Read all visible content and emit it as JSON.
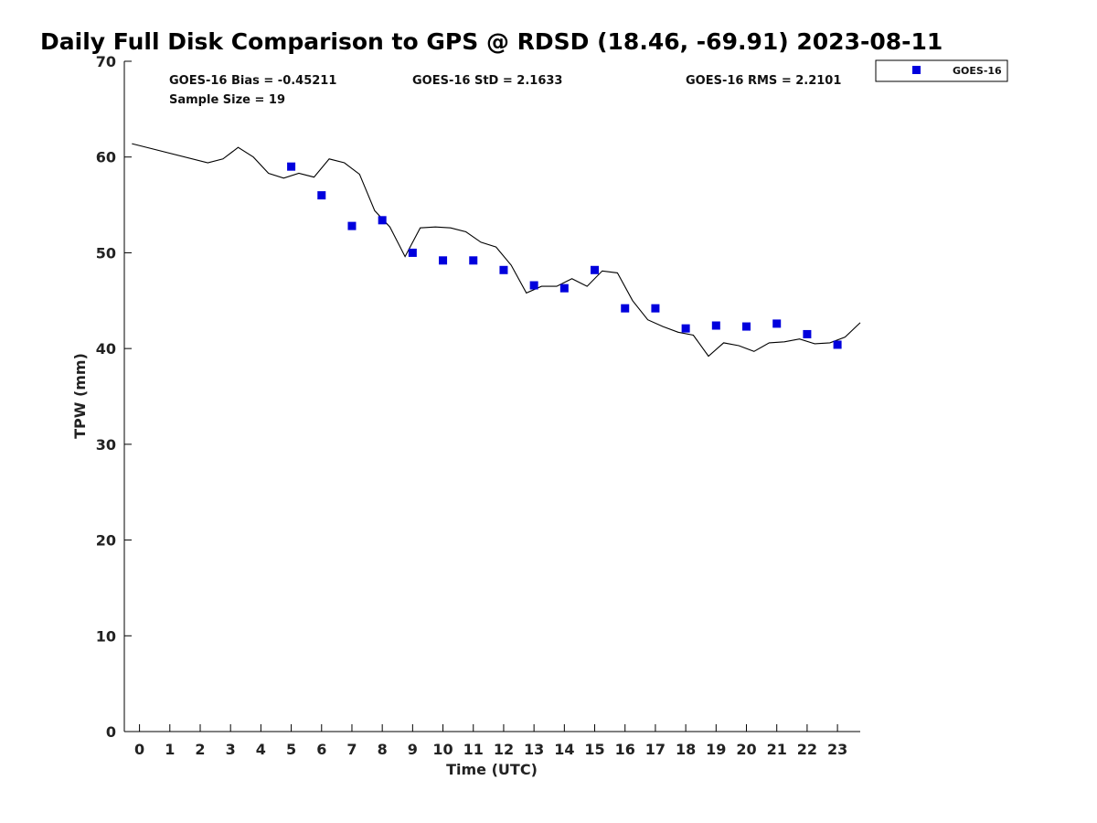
{
  "chart_data": {
    "type": "line",
    "title": "Daily Full Disk Comparison to GPS @ RDSD (18.46, -69.91) 2023-08-11",
    "xlabel": "Time (UTC)",
    "ylabel": "TPW (mm)",
    "xlim": [
      -0.5,
      23.75
    ],
    "ylim": [
      0,
      70
    ],
    "x_ticks": [
      0,
      1,
      2,
      3,
      4,
      5,
      6,
      7,
      8,
      9,
      10,
      11,
      12,
      13,
      14,
      15,
      16,
      17,
      18,
      19,
      20,
      21,
      22,
      23
    ],
    "y_ticks": [
      0,
      10,
      20,
      30,
      40,
      50,
      60,
      70
    ],
    "grid": false,
    "legend_position": "top-right, outside plot",
    "stats": {
      "bias": "GOES-16 Bias = -0.45211",
      "std": "GOES-16 StD = 2.1633",
      "rms": "GOES-16 RMS = 2.2101",
      "sample": "Sample Size = 19"
    },
    "series": [
      {
        "line": true,
        "color": "#000000",
        "x": [
          -0.25,
          2.25,
          2.75,
          3.25,
          3.75,
          4.25,
          4.75,
          5.25,
          5.75,
          6.25,
          6.75,
          7.25,
          7.75,
          8.25,
          8.75,
          9.25,
          9.75,
          10.25,
          10.75,
          11.25,
          11.75,
          12.25,
          12.75,
          13.25,
          13.75,
          14.25,
          14.75,
          15.25,
          15.75,
          16.25,
          16.75,
          17.25,
          17.75,
          18.25,
          18.75,
          19.25,
          19.75,
          20.25,
          20.75,
          21.25,
          21.75,
          22.25,
          22.75,
          23.25,
          23.75
        ],
        "y": [
          61.4,
          59.4,
          59.8,
          61.0,
          60.0,
          58.3,
          57.8,
          58.3,
          57.9,
          59.8,
          59.4,
          58.2,
          54.4,
          52.7,
          49.6,
          52.6,
          52.7,
          52.6,
          52.2,
          51.1,
          50.6,
          48.7,
          45.8,
          46.5,
          46.5,
          47.3,
          46.5,
          48.1,
          47.9,
          45.0,
          43.0,
          42.3,
          41.7,
          41.4,
          39.2,
          40.6,
          40.3,
          39.7,
          40.6,
          40.7,
          41.0,
          40.5,
          40.6,
          41.2,
          42.7
        ]
      },
      {
        "name": "GOES-16",
        "marker": "square",
        "color": "#0000dd",
        "x": [
          5,
          6,
          7,
          8,
          9,
          10,
          11,
          12,
          13,
          14,
          15,
          16,
          17,
          18,
          19,
          20,
          21,
          22,
          23
        ],
        "y": [
          59.0,
          56.0,
          52.8,
          53.4,
          50.0,
          49.2,
          49.2,
          48.2,
          46.6,
          46.3,
          48.2,
          44.2,
          44.2,
          42.1,
          42.4,
          42.3,
          42.6,
          41.5,
          40.4
        ]
      }
    ]
  }
}
